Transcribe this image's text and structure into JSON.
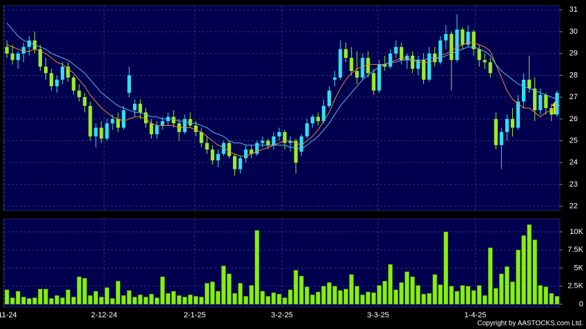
{
  "chart_data": {
    "type": "candlestick",
    "grid": true,
    "up_color": "#33ddee",
    "down_color": "#99ee22",
    "xticks": [
      {
        "value": -0.5,
        "label": "1-11-24"
      },
      {
        "value": 17.5,
        "label": "2-12-24"
      },
      {
        "value": 33.8,
        "label": "2-1-25"
      },
      {
        "value": 49.5,
        "label": "3-2-25"
      },
      {
        "value": 66.8,
        "label": "3-3-25"
      },
      {
        "value": 84.3,
        "label": "1-4-25"
      }
    ],
    "ylim": [
      21.8,
      31.2
    ],
    "yticks": [
      22,
      23,
      24,
      25,
      26,
      27,
      28,
      29,
      30,
      31
    ],
    "ohlc": [
      [
        29.3,
        29.6,
        28.8,
        29.0
      ],
      [
        29.0,
        29.4,
        28.5,
        28.7
      ],
      [
        28.7,
        29.1,
        28.3,
        29.0
      ],
      [
        29.0,
        29.5,
        28.6,
        29.3
      ],
      [
        29.3,
        29.8,
        28.9,
        29.6
      ],
      [
        29.6,
        30.0,
        29.0,
        29.2
      ],
      [
        29.2,
        29.4,
        28.2,
        28.4
      ],
      [
        28.4,
        28.8,
        27.8,
        28.1
      ],
      [
        28.1,
        28.3,
        27.3,
        27.5
      ],
      [
        27.5,
        28.0,
        27.2,
        27.8
      ],
      [
        27.8,
        28.6,
        27.6,
        28.4
      ],
      [
        28.4,
        28.6,
        27.7,
        27.9
      ],
      [
        27.9,
        28.0,
        27.1,
        27.3
      ],
      [
        27.3,
        27.6,
        26.8,
        27.0
      ],
      [
        27.0,
        27.2,
        26.3,
        26.6
      ],
      [
        26.6,
        26.8,
        25.0,
        25.2
      ],
      [
        25.2,
        25.8,
        24.7,
        25.6
      ],
      [
        25.6,
        25.9,
        24.9,
        25.1
      ],
      [
        25.1,
        26.0,
        25.0,
        25.8
      ],
      [
        25.8,
        26.2,
        25.5,
        26.0
      ],
      [
        26.0,
        26.3,
        25.4,
        25.6
      ],
      [
        25.6,
        26.6,
        25.5,
        26.4
      ],
      [
        27.2,
        28.4,
        27.0,
        28.0
      ],
      [
        26.4,
        26.9,
        26.1,
        26.7
      ],
      [
        26.7,
        26.9,
        26.0,
        26.3
      ],
      [
        26.3,
        26.5,
        25.6,
        25.8
      ],
      [
        25.8,
        26.0,
        25.1,
        25.3
      ],
      [
        25.3,
        25.9,
        25.1,
        25.7
      ],
      [
        25.7,
        26.1,
        25.5,
        25.9
      ],
      [
        25.9,
        26.3,
        25.7,
        26.1
      ],
      [
        26.1,
        26.4,
        25.6,
        25.8
      ],
      [
        25.8,
        26.0,
        25.0,
        25.4
      ],
      [
        25.4,
        26.2,
        25.3,
        26.0
      ],
      [
        26.0,
        26.3,
        25.6,
        25.7
      ],
      [
        25.7,
        25.9,
        25.2,
        25.4
      ],
      [
        25.4,
        25.6,
        24.7,
        24.9
      ],
      [
        24.9,
        25.2,
        24.4,
        24.6
      ],
      [
        24.6,
        24.8,
        23.9,
        24.1
      ],
      [
        24.1,
        24.6,
        23.8,
        24.4
      ],
      [
        24.4,
        25.0,
        24.3,
        24.9
      ],
      [
        24.9,
        25.0,
        24.2,
        24.3
      ],
      [
        24.3,
        24.4,
        23.4,
        23.7
      ],
      [
        23.7,
        24.3,
        23.5,
        24.2
      ],
      [
        24.2,
        24.8,
        24.0,
        24.6
      ],
      [
        24.6,
        24.8,
        24.2,
        24.4
      ],
      [
        24.4,
        25.0,
        24.3,
        24.9
      ],
      [
        24.9,
        25.2,
        24.7,
        25.0
      ],
      [
        25.0,
        25.1,
        24.6,
        24.8
      ],
      [
        24.8,
        25.4,
        24.6,
        25.2
      ],
      [
        25.2,
        25.6,
        25.0,
        25.4
      ],
      [
        25.4,
        25.5,
        24.6,
        24.9
      ],
      [
        24.9,
        25.2,
        24.5,
        25.0
      ],
      [
        25.0,
        25.1,
        23.5,
        24.0
      ],
      [
        24.5,
        25.3,
        24.3,
        25.2
      ],
      [
        25.2,
        26.0,
        25.1,
        25.8
      ],
      [
        25.8,
        26.2,
        25.6,
        26.1
      ],
      [
        26.1,
        26.3,
        25.7,
        25.9
      ],
      [
        25.9,
        26.9,
        25.8,
        26.6
      ],
      [
        26.6,
        27.5,
        26.5,
        27.3
      ],
      [
        27.8,
        28.2,
        27.5,
        27.9
      ],
      [
        27.9,
        29.6,
        27.8,
        29.2
      ],
      [
        29.2,
        29.5,
        28.6,
        28.8
      ],
      [
        28.8,
        29.3,
        28.0,
        28.2
      ],
      [
        28.2,
        29.1,
        27.6,
        27.9
      ],
      [
        27.9,
        29.0,
        27.8,
        28.8
      ],
      [
        28.8,
        29.1,
        27.9,
        28.1
      ],
      [
        28.1,
        28.3,
        27.1,
        27.3
      ],
      [
        27.3,
        28.7,
        27.2,
        28.5
      ],
      [
        28.5,
        28.9,
        28.2,
        28.4
      ],
      [
        28.4,
        29.2,
        28.3,
        29.0
      ],
      [
        29.0,
        29.6,
        28.8,
        29.3
      ],
      [
        29.3,
        29.5,
        28.5,
        28.7
      ],
      [
        28.7,
        29.0,
        28.3,
        28.9
      ],
      [
        28.9,
        29.1,
        28.1,
        28.3
      ],
      [
        28.3,
        28.9,
        28.0,
        28.7
      ],
      [
        28.7,
        29.0,
        27.6,
        27.8
      ],
      [
        27.8,
        29.3,
        27.7,
        29.0
      ],
      [
        29.0,
        29.3,
        28.4,
        28.6
      ],
      [
        28.6,
        29.8,
        28.5,
        29.6
      ],
      [
        29.6,
        30.3,
        29.2,
        29.9
      ],
      [
        29.9,
        30.0,
        27.3,
        28.7
      ],
      [
        28.7,
        30.8,
        28.6,
        30.1
      ],
      [
        30.1,
        30.2,
        29.2,
        29.4
      ],
      [
        29.4,
        30.3,
        29.3,
        30.0
      ],
      [
        30.0,
        30.1,
        28.9,
        29.2
      ],
      [
        29.2,
        29.4,
        28.4,
        28.7
      ],
      [
        28.7,
        29.0,
        28.3,
        28.6
      ],
      [
        28.6,
        28.8,
        27.9,
        28.1
      ],
      [
        26.0,
        26.3,
        24.6,
        24.8
      ],
      [
        24.8,
        25.6,
        23.7,
        25.4
      ],
      [
        25.4,
        26.2,
        25.0,
        26.0
      ],
      [
        26.0,
        26.5,
        25.2,
        25.6
      ],
      [
        25.6,
        27.1,
        25.5,
        26.8
      ],
      [
        26.8,
        28.1,
        26.5,
        27.8
      ],
      [
        27.8,
        28.9,
        27.2,
        27.4
      ],
      [
        27.4,
        27.9,
        25.9,
        26.4
      ],
      [
        26.4,
        27.4,
        26.2,
        27.1
      ],
      [
        27.1,
        27.2,
        26.2,
        26.5
      ],
      [
        26.5,
        26.7,
        25.9,
        26.2
      ],
      [
        26.2,
        27.3,
        26.1,
        27.2
      ]
    ],
    "lines": [
      {
        "color": "#e8902a",
        "values": [
          29.4,
          29.3,
          29.2,
          29.1,
          29.1,
          29.2,
          29.1,
          29.0,
          28.8,
          28.6,
          28.5,
          28.3,
          28.1,
          27.8,
          27.5,
          27.1,
          26.8,
          26.5,
          26.3,
          26.1,
          26.0,
          25.9,
          26.0,
          26.1,
          26.1,
          26.0,
          25.8,
          25.7,
          25.7,
          25.7,
          25.7,
          25.6,
          25.6,
          25.6,
          25.5,
          25.4,
          25.2,
          25.0,
          24.8,
          24.7,
          24.5,
          24.4,
          24.3,
          24.3,
          24.4,
          24.5,
          24.6,
          24.7,
          24.8,
          24.9,
          25.0,
          25.0,
          24.9,
          24.8,
          25.0,
          25.2,
          25.5,
          25.9,
          26.3,
          26.9,
          27.4,
          27.8,
          28.1,
          28.3,
          28.4,
          28.5,
          28.5,
          28.5,
          28.5,
          28.6,
          28.7,
          28.8,
          28.8,
          28.7,
          28.6,
          28.6,
          28.6,
          28.7,
          28.9,
          29.0,
          29.1,
          29.3,
          29.4,
          29.5,
          29.5,
          29.4,
          29.3,
          29.1,
          28.5,
          27.9,
          27.3,
          26.9,
          26.7,
          26.5,
          26.5,
          26.3,
          26.1,
          26.3,
          26.4,
          26.5
        ]
      },
      {
        "color": "#66b8ee",
        "values": [
          30.4,
          30.1,
          29.8,
          29.6,
          29.5,
          29.4,
          29.3,
          29.2,
          29.0,
          28.9,
          28.8,
          28.7,
          28.5,
          28.3,
          28.1,
          27.8,
          27.5,
          27.2,
          27.0,
          26.8,
          26.6,
          26.5,
          26.4,
          26.3,
          26.3,
          26.2,
          26.1,
          26.1,
          26.0,
          26.0,
          26.0,
          25.9,
          25.9,
          25.8,
          25.8,
          25.7,
          25.6,
          25.4,
          25.3,
          25.2,
          25.0,
          24.9,
          24.9,
          24.8,
          24.8,
          24.8,
          24.8,
          24.8,
          24.8,
          24.8,
          24.8,
          24.7,
          24.7,
          24.6,
          24.8,
          25.0,
          25.2,
          25.5,
          25.8,
          26.2,
          26.6,
          26.9,
          27.2,
          27.5,
          27.8,
          28.0,
          28.2,
          28.4,
          28.5,
          28.6,
          28.6,
          28.7,
          28.7,
          28.7,
          28.7,
          28.7,
          28.8,
          28.8,
          28.8,
          28.9,
          29.0,
          29.1,
          29.2,
          29.3,
          29.3,
          29.2,
          29.1,
          28.9,
          28.5,
          28.2,
          28.0,
          27.8,
          27.6,
          27.5,
          27.4,
          27.3,
          27.2,
          27.1,
          27.0,
          26.9
        ]
      }
    ],
    "volume": {
      "type": "bar",
      "color": "#88ee11",
      "ylim": [
        0,
        11800
      ],
      "yticks": [
        0,
        {
          "value": 2500,
          "label": "2.5K"
        },
        {
          "value": 5000,
          "label": "5K"
        },
        {
          "value": 7500,
          "label": "7.5K"
        },
        {
          "value": 10000,
          "label": "10K"
        }
      ],
      "values": [
        2000,
        900,
        1800,
        1000,
        800,
        900,
        2100,
        2100,
        800,
        1200,
        900,
        2000,
        1000,
        3800,
        3600,
        1200,
        1800,
        1000,
        2300,
        800,
        3200,
        1200,
        1900,
        1000,
        1300,
        1000,
        1400,
        900,
        3800,
        1500,
        1800,
        1200,
        1000,
        1300,
        1100,
        1000,
        2900,
        3100,
        1800,
        5300,
        4200,
        1500,
        2900,
        1100,
        2600,
        10200,
        1800,
        1100,
        1600,
        1400,
        900,
        2000,
        4700,
        3900,
        2400,
        1300,
        1700,
        2500,
        3000,
        2500,
        1900,
        2100,
        4100,
        2500,
        1300,
        1700,
        1600,
        2600,
        3200,
        5500,
        2000,
        3000,
        4500,
        3800,
        2600,
        1400,
        1500,
        4100,
        2700,
        10000,
        2500,
        1800,
        2600,
        2500,
        1900,
        2600,
        1200,
        7800,
        2200,
        4200,
        5200,
        3100,
        7500,
        9500,
        11000,
        8900,
        2600,
        2400,
        1500,
        1100
      ]
    },
    "copyright": "Copyright by AASTOCKS.com Ltd."
  }
}
